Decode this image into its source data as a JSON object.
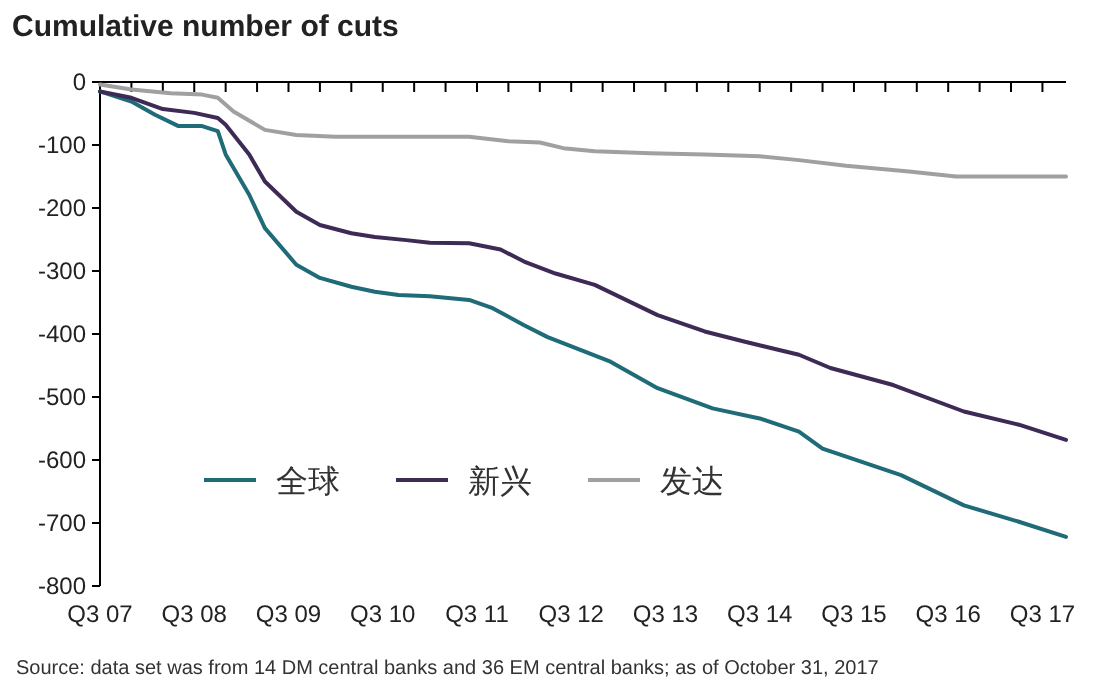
{
  "chart_data": {
    "type": "line",
    "title": "Cumulative number of cuts",
    "annotations": [
      "Source: data set was from 14 DM central banks and 36 EM central banks; as of October 31, 2017"
    ],
    "xlim": [
      "2007-07",
      "2017-10"
    ],
    "ylim": [
      -800,
      0
    ],
    "yticks": [
      0,
      -100,
      -200,
      -300,
      -400,
      -500,
      -600,
      -700,
      -800
    ],
    "xticks": [
      {
        "value": "2007-07",
        "label": "Q3 07"
      },
      {
        "value": "2007-11",
        "label": null
      },
      {
        "value": "2008-03",
        "label": null
      },
      {
        "value": "2008-07",
        "label": "Q3 08"
      },
      {
        "value": "2008-11",
        "label": null
      },
      {
        "value": "2009-03",
        "label": null
      },
      {
        "value": "2009-07",
        "label": "Q3 09"
      },
      {
        "value": "2009-11",
        "label": null
      },
      {
        "value": "2010-03",
        "label": null
      },
      {
        "value": "2010-07",
        "label": "Q3 10"
      },
      {
        "value": "2010-11",
        "label": null
      },
      {
        "value": "2011-03",
        "label": null
      },
      {
        "value": "2011-07",
        "label": "Q3 11"
      },
      {
        "value": "2011-11",
        "label": null
      },
      {
        "value": "2012-03",
        "label": null
      },
      {
        "value": "2012-07",
        "label": "Q3 12"
      },
      {
        "value": "2012-11",
        "label": null
      },
      {
        "value": "2013-03",
        "label": null
      },
      {
        "value": "2013-07",
        "label": "Q3 13"
      },
      {
        "value": "2013-11",
        "label": null
      },
      {
        "value": "2014-03",
        "label": null
      },
      {
        "value": "2014-07",
        "label": "Q3 14"
      },
      {
        "value": "2014-11",
        "label": null
      },
      {
        "value": "2015-03",
        "label": null
      },
      {
        "value": "2015-07",
        "label": "Q3 15"
      },
      {
        "value": "2015-11",
        "label": null
      },
      {
        "value": "2016-03",
        "label": null
      },
      {
        "value": "2016-07",
        "label": "Q3 16"
      },
      {
        "value": "2016-11",
        "label": null
      },
      {
        "value": "2017-03",
        "label": null
      },
      {
        "value": "2017-07",
        "label": "Q3 17"
      }
    ],
    "grid": false,
    "legend": "bottom left",
    "marker": "none",
    "line_style": "solid",
    "series": [
      {
        "name": "全球",
        "color": "#1f6b78",
        "x": [
          "2007-07",
          "2007-11",
          "2008-02",
          "2008-05",
          "2008-08",
          "2008-10",
          "2008-11",
          "2009-02",
          "2009-04",
          "2009-08",
          "2009-11",
          "2010-03",
          "2010-06",
          "2010-09",
          "2011-01",
          "2011-06",
          "2011-09",
          "2012-01",
          "2012-04",
          "2012-12",
          "2013-06",
          "2014-01",
          "2014-07",
          "2014-12",
          "2015-03",
          "2016-01",
          "2016-09",
          "2017-04",
          "2017-10"
        ],
        "values": [
          -15,
          -31,
          -52,
          -70,
          -70,
          -78,
          -115,
          -179,
          -232,
          -290,
          -311,
          -325,
          -333,
          -338,
          -340,
          -346,
          -359,
          -386,
          -405,
          -444,
          -486,
          -518,
          -534,
          -555,
          -582,
          -624,
          -672,
          -698,
          -722
        ]
      },
      {
        "name": "新兴",
        "color": "#3d2b56",
        "x": [
          "2007-07",
          "2007-11",
          "2008-03",
          "2008-07",
          "2008-10",
          "2008-11",
          "2009-02",
          "2009-04",
          "2009-08",
          "2009-11",
          "2010-03",
          "2010-06",
          "2010-10",
          "2011-01",
          "2011-06",
          "2011-10",
          "2012-01",
          "2012-05",
          "2012-10",
          "2013-06",
          "2013-12",
          "2014-05",
          "2014-12",
          "2015-04",
          "2015-12",
          "2016-09",
          "2017-04",
          "2017-10"
        ],
        "values": [
          -15,
          -25,
          -43,
          -49,
          -57,
          -68,
          -115,
          -158,
          -206,
          -227,
          -240,
          -246,
          -251,
          -255,
          -256,
          -266,
          -285,
          -304,
          -322,
          -370,
          -396,
          -412,
          -433,
          -454,
          -481,
          -523,
          -544,
          -568
        ]
      },
      {
        "name": "发达",
        "color": "#a0a0a0",
        "x": [
          "2007-07",
          "2007-11",
          "2008-04",
          "2008-08",
          "2008-10",
          "2008-12",
          "2009-04",
          "2009-08",
          "2010-01",
          "2010-10",
          "2011-06",
          "2011-11",
          "2012-03",
          "2012-06",
          "2012-10",
          "2013-05",
          "2013-12",
          "2014-07",
          "2014-12",
          "2015-06",
          "2016-02",
          "2016-08",
          "2017-10"
        ],
        "values": [
          -4,
          -12,
          -18,
          -20,
          -25,
          -47,
          -76,
          -84,
          -87,
          -87,
          -87,
          -94,
          -96,
          -105,
          -110,
          -113,
          -115,
          -118,
          -124,
          -133,
          -142,
          -150,
          -150
        ]
      }
    ]
  }
}
